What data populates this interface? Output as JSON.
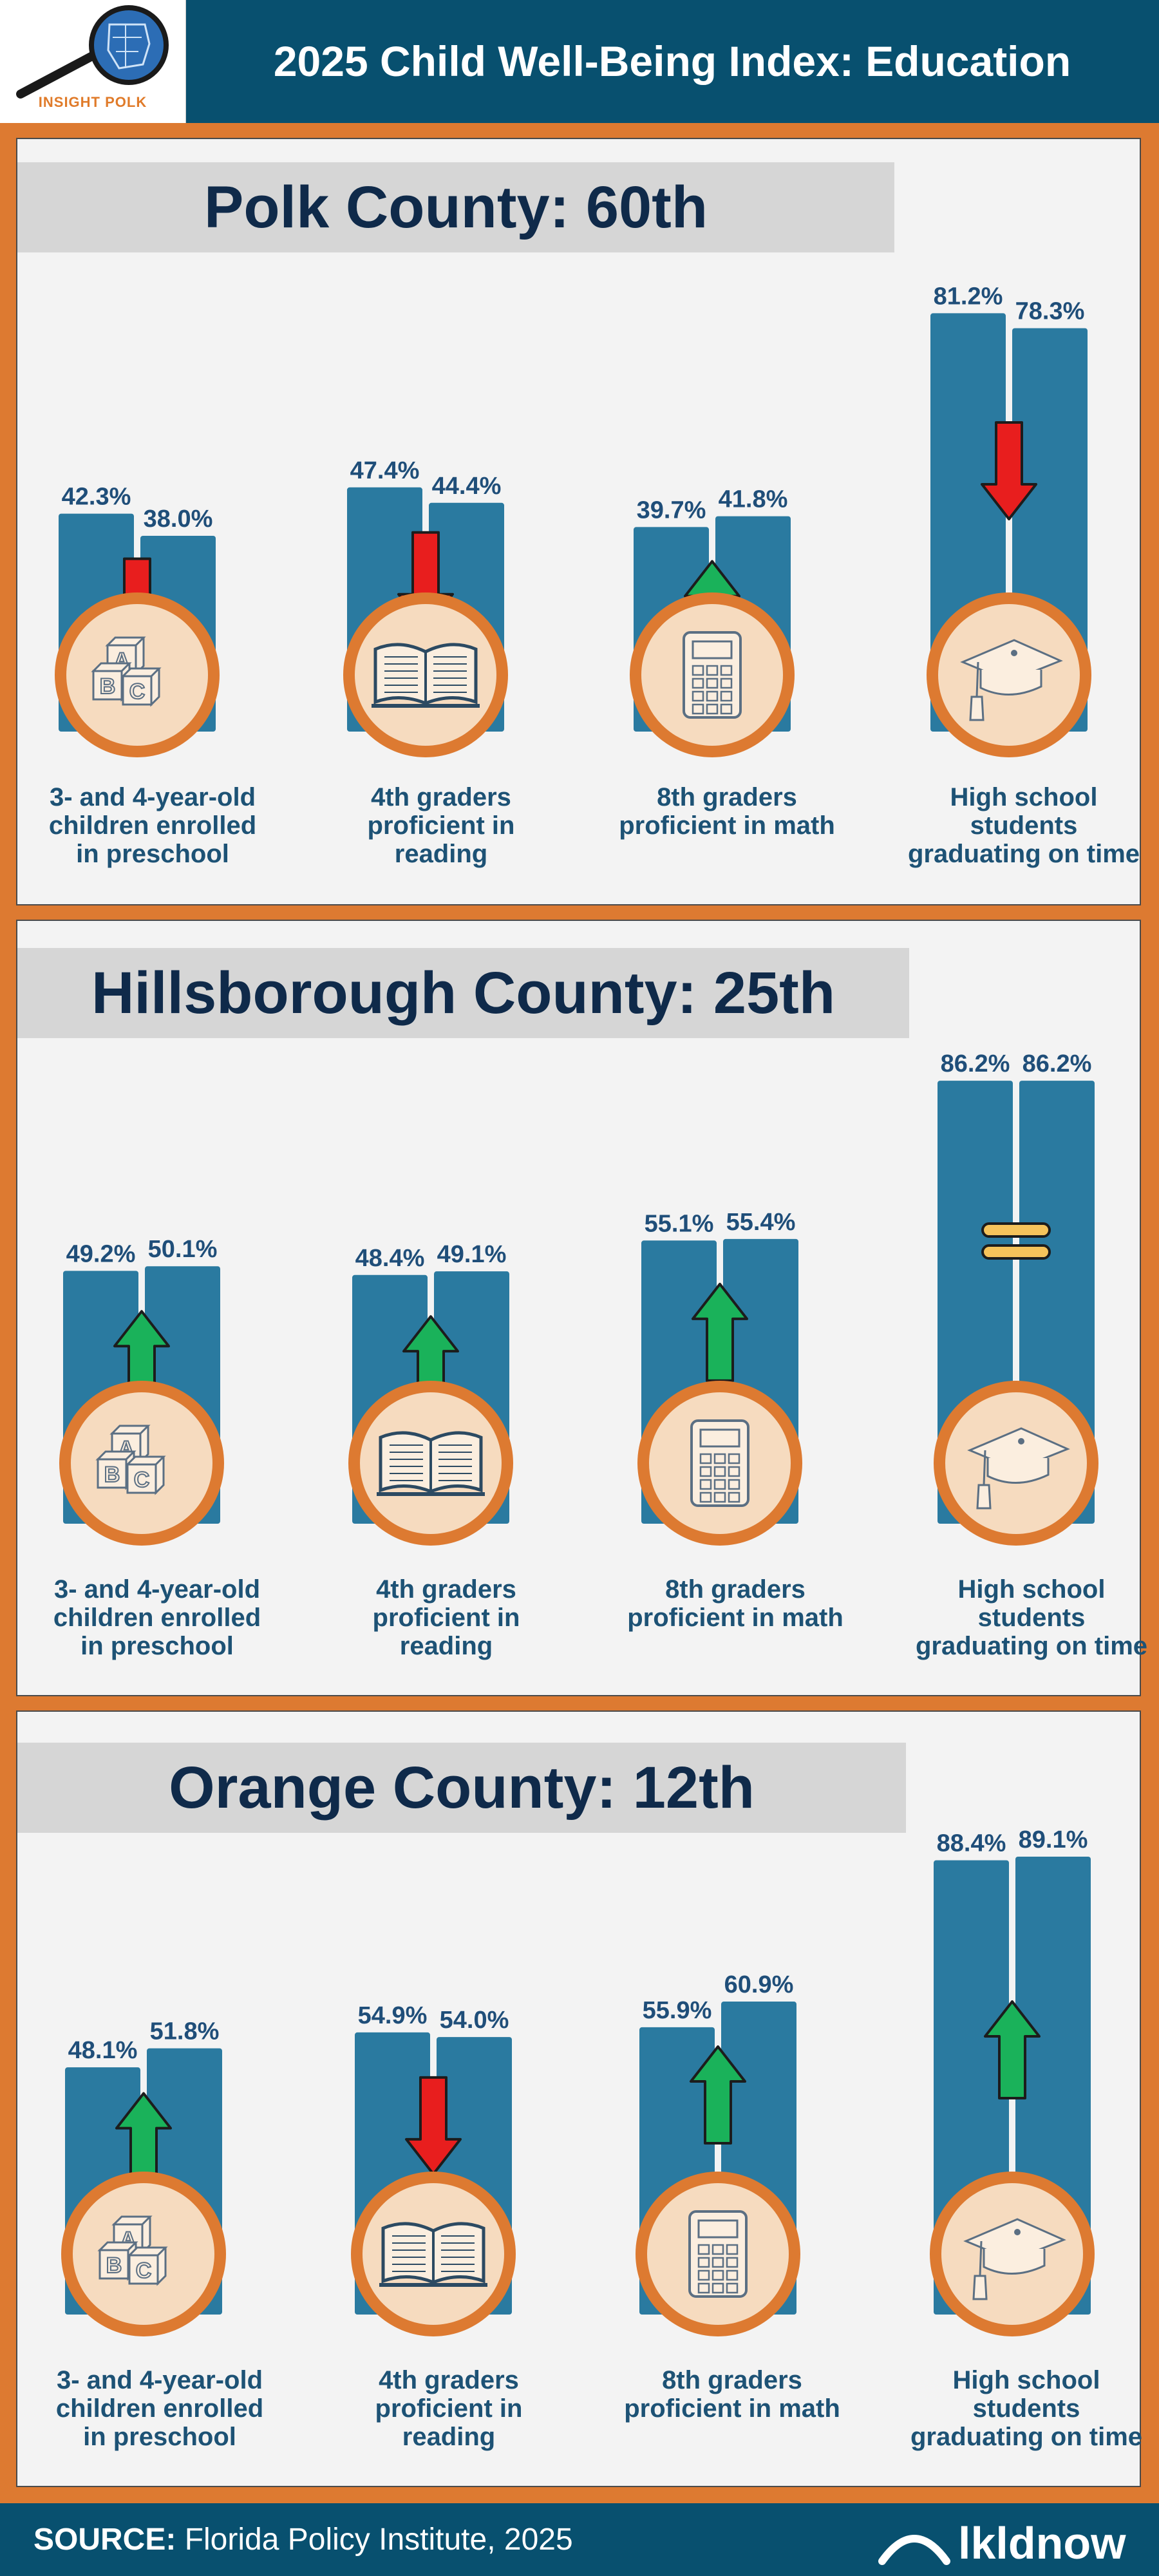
{
  "header": {
    "title": "2025 Child Well-Being Index: Education",
    "logo_text": "INSIGHT POLK"
  },
  "footer": {
    "source_label": "SOURCE:",
    "source_text": "Florida Policy Institute, 2025",
    "brand": "lkldnow"
  },
  "colors": {
    "bar": "#2a7aa0",
    "header_bg": "#08506f",
    "frame": "#dd7a31",
    "up": "#1ab25a",
    "down": "#e81e1e",
    "same": "#f5c35b",
    "icon_ring": "#dd7a31",
    "icon_fill": "#f6dbbf"
  },
  "chart_data": [
    {
      "type": "bar",
      "title": "Polk County: 60th",
      "categories": [
        "3- and  4-year-old children enrolled in preschool",
        "4th graders proficient in reading",
        "8th graders proficient in math",
        "High school students graduating on time"
      ],
      "series": [
        {
          "values": [
            42.3,
            47.4,
            39.7,
            81.2
          ],
          "labels": [
            "42.3%",
            "47.4%",
            "39.7%",
            "81.2%"
          ]
        },
        {
          "values": [
            38.0,
            44.4,
            41.8,
            78.3
          ],
          "labels": [
            "38.0%",
            "44.4%",
            "41.8%",
            "78.3%"
          ]
        }
      ],
      "trend": [
        "down",
        "down",
        "up",
        "down"
      ],
      "icons": [
        "abc-blocks-icon",
        "open-book-icon",
        "calculator-icon",
        "graduation-cap-icon"
      ]
    },
    {
      "type": "bar",
      "title": "Hillsborough County: 25th",
      "categories": [
        "3- and  4-year-old children enrolled in preschool",
        "4th graders proficient in reading",
        "8th graders proficient in math",
        "High school students graduating on time"
      ],
      "series": [
        {
          "values": [
            49.2,
            48.4,
            55.1,
            86.2
          ],
          "labels": [
            "49.2%",
            "48.4%",
            "55.1%",
            "86.2%"
          ]
        },
        {
          "values": [
            50.1,
            49.1,
            55.4,
            86.2
          ],
          "labels": [
            "50.1%",
            "49.1%",
            "55.4%",
            "86.2%"
          ]
        }
      ],
      "trend": [
        "up",
        "up",
        "up",
        "same"
      ],
      "icons": [
        "abc-blocks-icon",
        "open-book-icon",
        "calculator-icon",
        "graduation-cap-icon"
      ]
    },
    {
      "type": "bar",
      "title": "Orange County: 12th",
      "categories": [
        "3- and  4-year-old children enrolled in preschool",
        "4th graders proficient in reading",
        "8th graders proficient in math",
        "High school students graduating on time"
      ],
      "series": [
        {
          "values": [
            48.1,
            54.9,
            55.9,
            88.4
          ],
          "labels": [
            "48.1%",
            "54.9%",
            "55.9%",
            "88.4%"
          ]
        },
        {
          "values": [
            51.8,
            54.0,
            60.9,
            89.1
          ],
          "labels": [
            "51.8%",
            "54.0%",
            "60.9%",
            "89.1%"
          ]
        }
      ],
      "trend": [
        "up",
        "down",
        "up",
        "up"
      ],
      "icons": [
        "abc-blocks-icon",
        "open-book-icon",
        "calculator-icon",
        "graduation-cap-icon"
      ]
    }
  ]
}
